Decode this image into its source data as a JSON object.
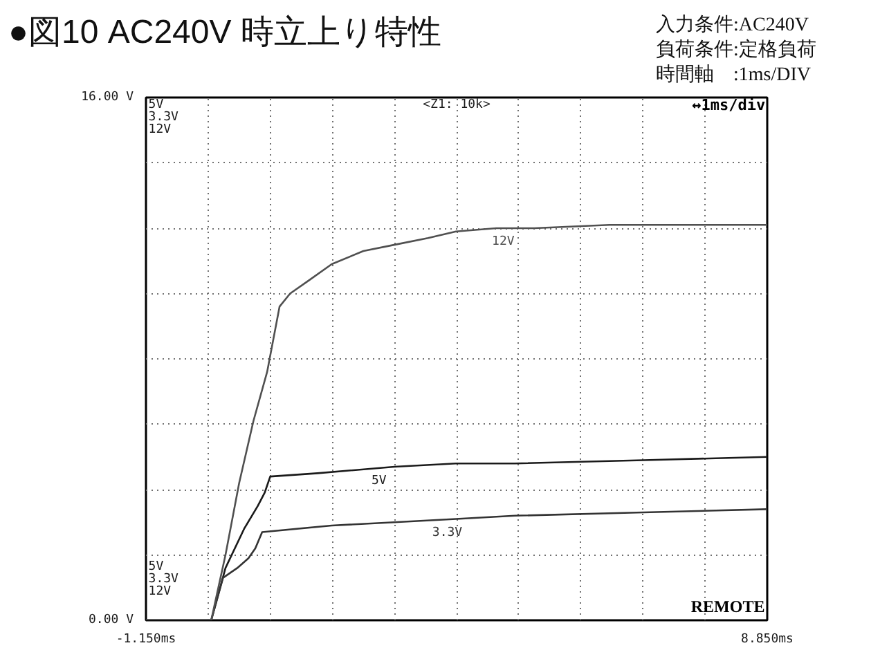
{
  "chart_data": {
    "type": "line",
    "title": "●図10 AC240V 時立上り特性",
    "annotations": [
      "入力条件:AC240V",
      "負荷条件:定格負荷",
      "時間軸　:1ms/DIV",
      "<Z1: 10k>",
      "↔1ms/div",
      "REMOTE"
    ],
    "xlim": [
      -1.15,
      8.85
    ],
    "xticks": [
      {
        "value": -1.15,
        "label": "-1.150ms"
      },
      {
        "value": -0.15,
        "label": null
      },
      {
        "value": 0.85,
        "label": null
      },
      {
        "value": 1.85,
        "label": null
      },
      {
        "value": 2.85,
        "label": null
      },
      {
        "value": 3.85,
        "label": null
      },
      {
        "value": 4.85,
        "label": null
      },
      {
        "value": 5.85,
        "label": null
      },
      {
        "value": 6.85,
        "label": null
      },
      {
        "value": 7.85,
        "label": null
      },
      {
        "value": 8.85,
        "label": "8.850ms"
      }
    ],
    "ylim": [
      0,
      16
    ],
    "yticks": [
      {
        "value": 0,
        "label": "0.00 V"
      },
      {
        "value": 2,
        "label": null
      },
      {
        "value": 4,
        "label": null
      },
      {
        "value": 6,
        "label": null
      },
      {
        "value": 8,
        "label": null
      },
      {
        "value": 10,
        "label": null
      },
      {
        "value": 12,
        "label": null
      },
      {
        "value": 14,
        "label": null
      },
      {
        "value": 16,
        "label": "16.00 V"
      }
    ],
    "grid": true,
    "series": [
      {
        "name": "5V",
        "color": "#1a1a1a",
        "x": [
          -1.15,
          -0.1,
          0.13,
          0.43,
          0.65,
          0.76,
          0.85,
          1.61,
          2.85,
          3.84,
          4.79,
          6.86,
          8.85
        ],
        "values": [
          0,
          0,
          1.6,
          2.8,
          3.5,
          3.9,
          4.4,
          4.5,
          4.7,
          4.8,
          4.8,
          4.9,
          5.0
        ]
      },
      {
        "name": "3.3V",
        "color": "#333333",
        "x": [
          -1.15,
          -0.1,
          0.09,
          0.32,
          0.5,
          0.61,
          0.72,
          1.84,
          2.85,
          3.84,
          4.79,
          6.86,
          8.85
        ],
        "values": [
          0,
          0,
          1.3,
          1.6,
          1.9,
          2.2,
          2.7,
          2.9,
          3.0,
          3.1,
          3.2,
          3.3,
          3.4
        ]
      },
      {
        "name": "12V",
        "color": "#505050",
        "x": [
          -1.15,
          -0.1,
          0.13,
          0.35,
          0.58,
          0.8,
          1.0,
          1.17,
          1.47,
          1.84,
          2.35,
          2.87,
          3.39,
          3.84,
          4.49,
          5.1,
          6.31,
          8.85
        ],
        "values": [
          0,
          0,
          2.0,
          4.2,
          6.1,
          7.6,
          9.6,
          10.0,
          10.4,
          10.9,
          11.3,
          11.5,
          11.7,
          11.9,
          12.0,
          12.0,
          12.1,
          12.1
        ]
      }
    ]
  }
}
